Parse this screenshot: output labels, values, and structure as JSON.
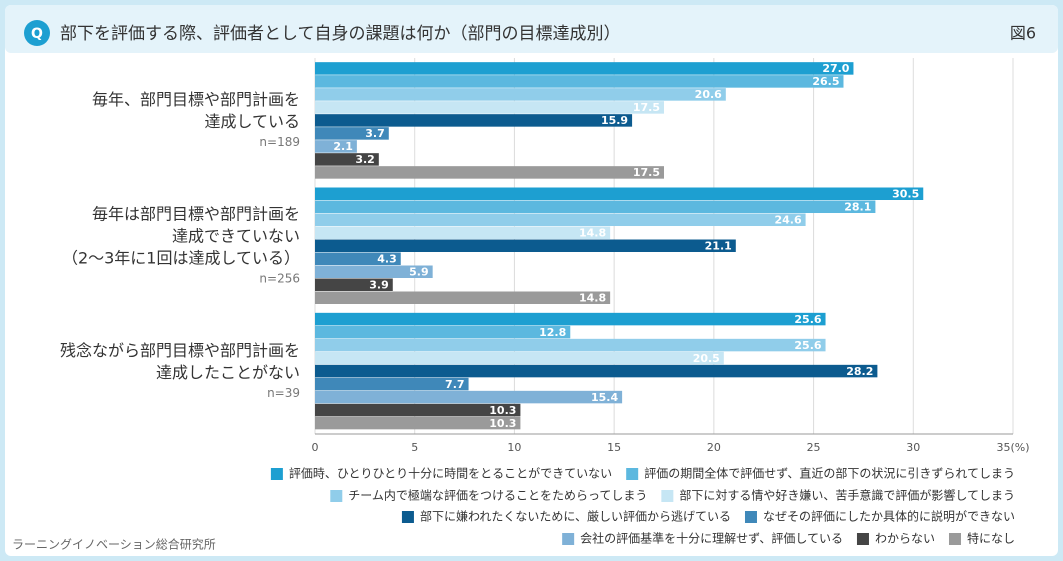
{
  "chart_data": {
    "type": "bar",
    "orientation": "horizontal",
    "title": "部下を評価する際、評価者として自身の課題は何か（部門の目標達成別）",
    "title_icon": "Q",
    "figure_label": "図6",
    "source": "ラーニングイノベーション総合研究所",
    "categories": [
      [
        "毎年、部門目標や部門計画を",
        "達成している"
      ],
      [
        "毎年は部門目標や部門計画を",
        "達成できていない",
        "（2～3年に1回は達成している）"
      ],
      [
        "残念ながら部門目標や部門計画を",
        "達成したことがない"
      ]
    ],
    "category_notes": [
      "n=189",
      "n=256",
      "n=39"
    ],
    "series": [
      {
        "name": "評価時、ひとりひとり十分に時間をとることができていない",
        "color": "#1d9fd1",
        "values": [
          27.0,
          30.5,
          25.6
        ],
        "value_labels": [
          "27.0",
          "30.5",
          "25.6"
        ]
      },
      {
        "name": "評価の期間全体で評価せず、直近の部下の状況に引きずられてしまう",
        "color": "#5cb8df",
        "values": [
          26.5,
          28.1,
          12.8
        ],
        "value_labels": [
          "26.5",
          "28.1",
          "12.8"
        ]
      },
      {
        "name": "チーム内で極端な評価をつけることをためらってしまう",
        "color": "#90cdea",
        "values": [
          20.6,
          24.6,
          25.6
        ],
        "value_labels": [
          "20.6",
          "24.6",
          "25.6"
        ]
      },
      {
        "name": "部下に対する情や好き嫌い、苦手意識で評価が影響してしまう",
        "color": "#c6e6f4",
        "values": [
          17.5,
          14.8,
          20.5
        ],
        "value_labels": [
          "17.5",
          "14.8",
          "20.5"
        ]
      },
      {
        "name": "部下に嫌われたくないために、厳しい評価から逃げている",
        "color": "#0c5b8f",
        "values": [
          15.9,
          21.1,
          28.2
        ],
        "value_labels": [
          "15.9",
          "21.1",
          "28.2"
        ]
      },
      {
        "name": "なぜその評価にしたか具体的に説明ができない",
        "color": "#3f88b9",
        "values": [
          3.7,
          4.3,
          7.7
        ],
        "value_labels": [
          "3.7",
          "4.3",
          "7.7"
        ]
      },
      {
        "name": "会社の評価基準を十分に理解せず、評価している",
        "color": "#7fb1d7",
        "values": [
          2.1,
          5.9,
          15.4
        ],
        "value_labels": [
          "2.1",
          "5.9",
          "15.4"
        ]
      },
      {
        "name": "わからない",
        "color": "#454545",
        "values": [
          3.2,
          3.9,
          10.3
        ],
        "value_labels": [
          "3.2",
          "3.9",
          "10.3"
        ]
      },
      {
        "name": "特になし",
        "color": "#9a9a9a",
        "values": [
          17.5,
          14.8,
          10.3
        ],
        "value_labels": [
          "17.5",
          "14.8",
          "10.3"
        ]
      }
    ],
    "xlim": [
      0,
      35
    ],
    "xticks": [
      0,
      5,
      10,
      15,
      20,
      25,
      30,
      {
        "value": 35,
        "label": "35(%)"
      }
    ],
    "grid": true
  }
}
